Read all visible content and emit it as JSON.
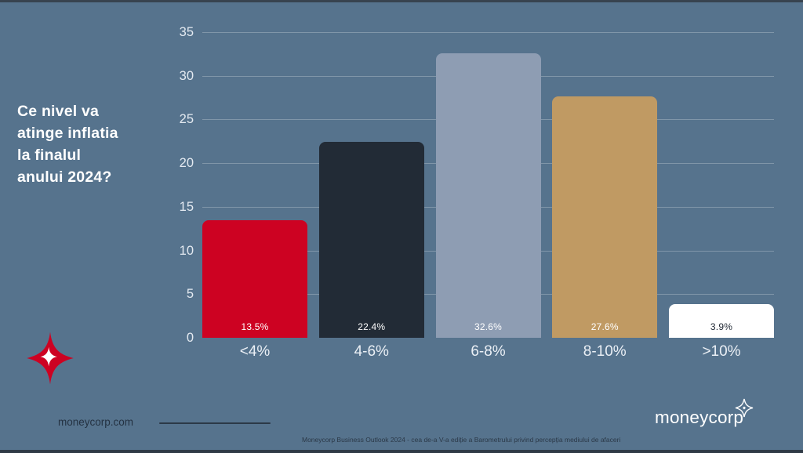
{
  "slide": {
    "title": "Ce nivel va\natinge inflatia\nla finalul\nanului 2024?",
    "website": "moneycorp.com",
    "brand": "moneycorp",
    "footer": "Moneycorp Business Outlook 2024 - cea de-a V-a ediție a Barometrului privind percepția mediului de afaceri",
    "background_color": "#56738d",
    "accent_red": "#cd0222"
  },
  "chart_data": {
    "type": "bar",
    "title": "Ce nivel va atinge inflatia la finalul anului 2024?",
    "categories": [
      "<4%",
      "4-6%",
      "6-8%",
      "8-10%",
      ">10%"
    ],
    "values": [
      13.5,
      22.4,
      32.6,
      27.6,
      3.9
    ],
    "value_labels": [
      "13.5%",
      "22.4%",
      "32.6%",
      "27.6%",
      "3.9%"
    ],
    "bar_colors": [
      "#cd0222",
      "#222b36",
      "#8e9db3",
      "#c09a63",
      "#ffffff"
    ],
    "value_label_colors": [
      "#ffffff",
      "#ffffff",
      "#ffffff",
      "#ffffff",
      "#1f2733"
    ],
    "xlabel": "",
    "ylabel": "",
    "ylim": [
      0,
      35
    ],
    "yticks": [
      0,
      5,
      10,
      15,
      20,
      25,
      30,
      35
    ],
    "grid": true,
    "legend": "none"
  }
}
